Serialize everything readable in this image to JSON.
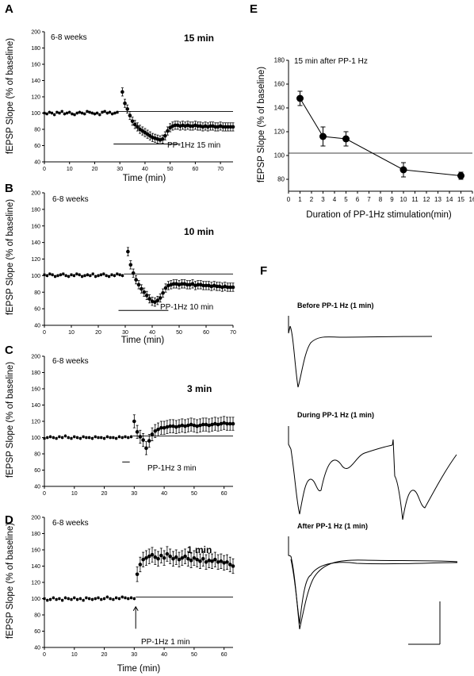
{
  "chart_data": [
    {
      "type": "scatter",
      "panel_label": "A",
      "age_note": "6-8 weeks",
      "duration_label": "15 min",
      "stim_label": "PP-1Hz 15 min",
      "xlabel": "Time (min)",
      "ylabel": "fEPSP Slope (% of baseline)",
      "xlim": [
        0,
        75
      ],
      "ylim": [
        40,
        200
      ],
      "xticks": [
        0,
        10,
        20,
        30,
        40,
        50,
        60,
        70
      ],
      "yticks": [
        40,
        60,
        80,
        100,
        120,
        140,
        160,
        180,
        200
      ],
      "baseline": 102,
      "stim_window": [
        27.5,
        54
      ],
      "pre": {
        "x_start": 0,
        "x_end": 29,
        "step": 1,
        "values": [
          100,
          99,
          101,
          100,
          98,
          101,
          100,
          102,
          99,
          100,
          101,
          99,
          98,
          100,
          101,
          100,
          99,
          102,
          101,
          100,
          99,
          100,
          98,
          101,
          102,
          100,
          101,
          99,
          100,
          101
        ],
        "err": 2
      },
      "post": {
        "x_start": 31,
        "x_end": 75,
        "step": 1,
        "values": [
          126,
          112,
          105,
          97,
          90,
          86,
          83,
          80,
          78,
          76,
          74,
          72,
          70,
          69,
          68,
          67,
          68,
          72,
          78,
          82,
          84,
          85,
          85,
          84,
          85,
          84,
          85,
          84,
          84,
          85,
          84,
          84,
          83,
          84,
          83,
          84,
          84,
          83,
          83,
          84,
          83,
          83,
          83,
          83,
          83
        ],
        "err": 5
      }
    },
    {
      "type": "scatter",
      "panel_label": "B",
      "age_note": "6-8 weeks",
      "duration_label": "10 min",
      "stim_label": "PP-1Hz 10 min",
      "xlabel": "Time (min)",
      "ylabel": "fEPSP Slope (% of baseline)",
      "xlim": [
        0,
        70
      ],
      "ylim": [
        40,
        200
      ],
      "xticks": [
        0,
        10,
        20,
        30,
        40,
        50,
        60,
        70
      ],
      "yticks": [
        40,
        60,
        80,
        100,
        120,
        140,
        160,
        180,
        200
      ],
      "baseline": 102,
      "stim_window": [
        27.5,
        46
      ],
      "pre": {
        "x_start": 0,
        "x_end": 29,
        "step": 1,
        "values": [
          101,
          100,
          102,
          101,
          99,
          100,
          101,
          102,
          100,
          99,
          101,
          100,
          102,
          101,
          99,
          100,
          101,
          100,
          102,
          99,
          100,
          101,
          102,
          100,
          99,
          101,
          100,
          102,
          101,
          100
        ],
        "err": 2
      },
      "post": {
        "x_start": 31,
        "x_end": 70,
        "step": 1,
        "values": [
          129,
          113,
          103,
          95,
          89,
          84,
          80,
          76,
          72,
          69,
          68,
          70,
          73,
          79,
          85,
          88,
          89,
          90,
          90,
          89,
          90,
          90,
          89,
          89,
          90,
          88,
          89,
          89,
          88,
          88,
          88,
          87,
          88,
          87,
          87,
          86,
          87,
          86,
          86,
          86
        ],
        "err": 5
      }
    },
    {
      "type": "scatter",
      "panel_label": "C",
      "age_note": "6-8 weeks",
      "duration_label": "3 min",
      "stim_label": "PP-1Hz 3 min",
      "xlabel": "",
      "ylabel": "fEPSP Slope (% of baseline)",
      "xlim": [
        0,
        63
      ],
      "ylim": [
        40,
        200
      ],
      "xticks": [
        0,
        10,
        20,
        30,
        40,
        50,
        60
      ],
      "yticks": [
        40,
        60,
        80,
        100,
        120,
        140,
        160,
        180,
        200
      ],
      "baseline": 102,
      "stim_window": [
        26,
        28.5
      ],
      "pre": {
        "x_start": 0,
        "x_end": 29,
        "step": 1,
        "values": [
          99,
          100,
          101,
          100,
          99,
          101,
          100,
          102,
          100,
          99,
          101,
          100,
          99,
          101,
          100,
          100,
          99,
          101,
          100,
          100,
          99,
          101,
          100,
          100,
          99,
          101,
          100,
          101,
          100,
          101
        ],
        "err": 2
      },
      "post": {
        "x_start": 30,
        "x_end": 63,
        "step": 1,
        "values": [
          120,
          107,
          101,
          97,
          87,
          96,
          104,
          108,
          110,
          112,
          112,
          113,
          114,
          114,
          113,
          114,
          115,
          114,
          115,
          116,
          115,
          114,
          115,
          116,
          116,
          115,
          116,
          117,
          116,
          117,
          118,
          117,
          117,
          117
        ],
        "err": 8
      }
    },
    {
      "type": "scatter",
      "panel_label": "D",
      "age_note": "6-8 weeks",
      "duration_label": "1 min",
      "stim_label": "PP-1Hz 1 min",
      "xlabel": "Time (min)",
      "ylabel": "fEPSP Slope (% of baseline)",
      "xlim": [
        0,
        63
      ],
      "ylim": [
        40,
        200
      ],
      "xticks": [
        0,
        10,
        20,
        30,
        40,
        50,
        60
      ],
      "yticks": [
        40,
        60,
        80,
        100,
        120,
        140,
        160,
        180,
        200
      ],
      "baseline": 102,
      "arrow_x": 30.5,
      "pre": {
        "x_start": 0,
        "x_end": 30,
        "step": 1,
        "values": [
          100,
          98,
          99,
          101,
          99,
          100,
          98,
          101,
          100,
          99,
          101,
          99,
          100,
          98,
          101,
          100,
          99,
          100,
          101,
          99,
          100,
          102,
          100,
          99,
          101,
          100,
          102,
          101,
          100,
          101,
          100
        ],
        "err": 2
      },
      "post": {
        "x_start": 31,
        "x_end": 63,
        "step": 1,
        "values": [
          130,
          142,
          148,
          150,
          152,
          154,
          151,
          149,
          153,
          150,
          155,
          152,
          149,
          151,
          148,
          150,
          152,
          149,
          147,
          150,
          148,
          146,
          149,
          145,
          147,
          146,
          148,
          145,
          146,
          144,
          145,
          142,
          140
        ],
        "err": 9
      }
    },
    {
      "type": "line",
      "panel_label": "E",
      "note": "15 min after PP-1 Hz",
      "xlabel": "Duration of PP-1Hz stimulation(min)",
      "ylabel": "fEPSP Slope (% of baseline)",
      "xlim": [
        0,
        16
      ],
      "ylim": [
        70,
        180
      ],
      "xticks": [
        0,
        1,
        2,
        3,
        4,
        5,
        6,
        7,
        8,
        9,
        10,
        11,
        12,
        13,
        14,
        15,
        16
      ],
      "yticks": [
        80,
        100,
        120,
        140,
        160,
        180
      ],
      "baseline": 102,
      "x": [
        1,
        3,
        5,
        10,
        15
      ],
      "y": [
        148,
        116,
        114,
        88,
        83
      ],
      "err": [
        6,
        8,
        6,
        6,
        3
      ]
    }
  ],
  "panelF": {
    "label": "F",
    "before_title": "Before PP-1 Hz (1 min)",
    "during_title": "During  PP-1 Hz (1 min)",
    "after_title": "After  PP-1 Hz (1 min)"
  }
}
